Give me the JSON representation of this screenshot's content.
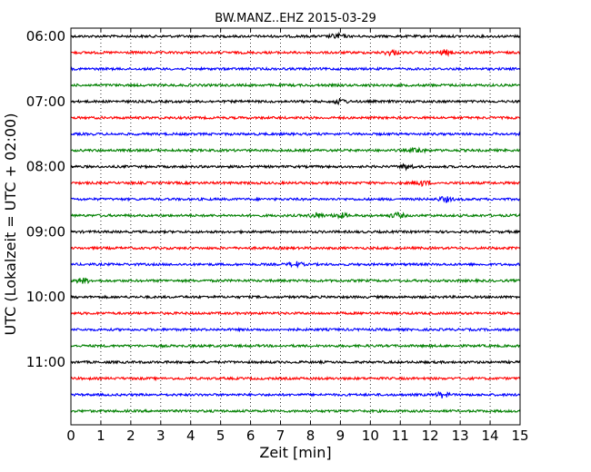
{
  "chart_data": {
    "type": "line",
    "title": "BW.MANZ..EHZ 2015-03-29",
    "xlabel": "Zeit  [min]",
    "ylabel": "UTC (Lokalzeit = UTC + 02:00)",
    "xlim": [
      0,
      15
    ],
    "x_ticks": [
      "0",
      "1",
      "2",
      "3",
      "4",
      "5",
      "6",
      "7",
      "8",
      "9",
      "10",
      "11",
      "12",
      "13",
      "14",
      "15"
    ],
    "y_tick_labels": [
      "06:00",
      "07:00",
      "08:00",
      "09:00",
      "10:00",
      "11:00"
    ],
    "grid": "vertical dotted",
    "trace_interval_min": 15,
    "trace_colors": [
      "#000000",
      "#ff0000",
      "#0000ff",
      "#008000"
    ],
    "series": [
      {
        "start": "06:00",
        "bursts": [
          8.9
        ]
      },
      {
        "start": "06:15",
        "bursts": [
          10.7,
          12.5
        ]
      },
      {
        "start": "06:30",
        "bursts": []
      },
      {
        "start": "06:45",
        "bursts": []
      },
      {
        "start": "07:00",
        "bursts": [
          9.0
        ]
      },
      {
        "start": "07:15",
        "bursts": []
      },
      {
        "start": "07:30",
        "bursts": []
      },
      {
        "start": "07:45",
        "bursts": [
          11.6
        ]
      },
      {
        "start": "08:00",
        "bursts": [
          11.2
        ]
      },
      {
        "start": "08:15",
        "bursts": [
          11.7
        ]
      },
      {
        "start": "08:30",
        "bursts": [
          12.5
        ]
      },
      {
        "start": "08:45",
        "bursts": [
          8.2,
          9.0,
          10.9
        ]
      },
      {
        "start": "09:00",
        "bursts": []
      },
      {
        "start": "09:15",
        "bursts": []
      },
      {
        "start": "09:30",
        "bursts": [
          7.5
        ]
      },
      {
        "start": "09:45",
        "bursts": [
          0.4
        ]
      },
      {
        "start": "10:00",
        "bursts": []
      },
      {
        "start": "10:15",
        "bursts": []
      },
      {
        "start": "10:30",
        "bursts": []
      },
      {
        "start": "10:45",
        "bursts": []
      },
      {
        "start": "11:00",
        "bursts": []
      },
      {
        "start": "11:15",
        "bursts": []
      },
      {
        "start": "11:30",
        "bursts": [
          12.4
        ]
      },
      {
        "start": "11:45",
        "bursts": []
      }
    ]
  }
}
